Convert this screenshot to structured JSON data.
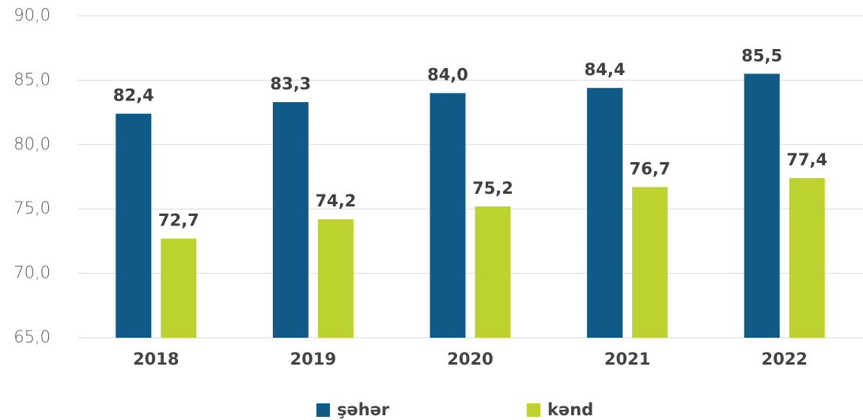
{
  "chart_data": {
    "type": "bar",
    "categories": [
      "2018",
      "2019",
      "2020",
      "2021",
      "2022"
    ],
    "series": [
      {
        "name": "şəhər",
        "color": "#0f5a87",
        "values": [
          82.4,
          83.3,
          84.0,
          84.4,
          85.5
        ],
        "value_labels": [
          "82,4",
          "83,3",
          "84,0",
          "84,4",
          "85,5"
        ]
      },
      {
        "name": "kənd",
        "color": "#bed22f",
        "values": [
          72.7,
          74.2,
          75.2,
          76.7,
          77.4
        ],
        "value_labels": [
          "72,7",
          "74,2",
          "75,2",
          "76,7",
          "77,4"
        ]
      }
    ],
    "ylim": [
      65,
      90
    ],
    "yticks": [
      {
        "value": 65,
        "label": "65,0"
      },
      {
        "value": 70,
        "label": "70,0"
      },
      {
        "value": 75,
        "label": "75,0"
      },
      {
        "value": 80,
        "label": "80,0"
      },
      {
        "value": 85,
        "label": "85,0"
      },
      {
        "value": 90,
        "label": "90,0"
      }
    ],
    "grid": true
  }
}
